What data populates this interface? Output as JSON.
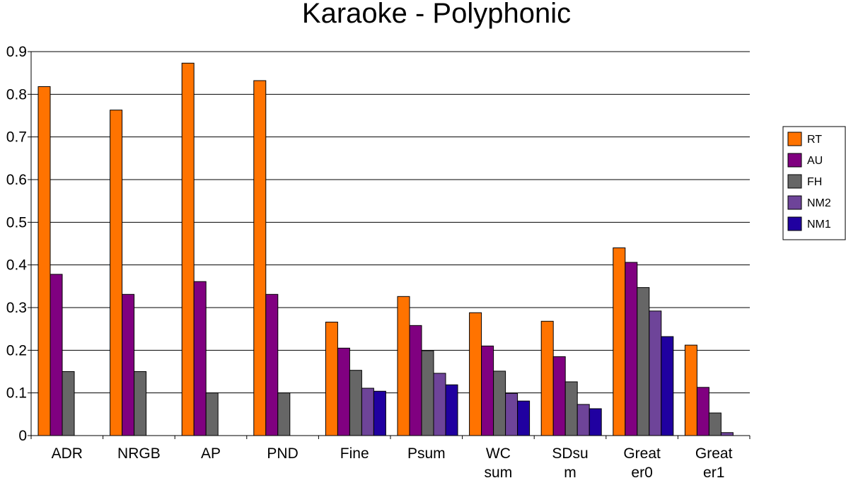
{
  "chart_data": {
    "type": "bar",
    "title": "Karaoke - Polyphonic",
    "xlabel": "",
    "ylabel": "",
    "ylim": [
      0,
      0.9
    ],
    "yticks": [
      "0",
      "0.1",
      "0.2",
      "0.3",
      "0.4",
      "0.5",
      "0.6",
      "0.7",
      "0.8",
      "0.9"
    ],
    "grid": true,
    "legend_position": "right",
    "categories": [
      [
        "ADR"
      ],
      [
        "NRGB"
      ],
      [
        "AP"
      ],
      [
        "PND"
      ],
      [
        "Fine"
      ],
      [
        "Psum"
      ],
      [
        "WC",
        "sum"
      ],
      [
        "SDsu",
        "m"
      ],
      [
        "Great",
        "er0"
      ],
      [
        "Great",
        "er1"
      ]
    ],
    "series": [
      {
        "name": "RT",
        "color": "#FF7300",
        "values": [
          0.818,
          0.763,
          0.873,
          0.832,
          0.266,
          0.326,
          0.288,
          0.268,
          0.44,
          0.212
        ]
      },
      {
        "name": "AU",
        "color": "#800080",
        "values": [
          0.378,
          0.331,
          0.361,
          0.331,
          0.205,
          0.258,
          0.21,
          0.185,
          0.406,
          0.113
        ]
      },
      {
        "name": "FH",
        "color": "#666666",
        "values": [
          0.15,
          0.15,
          0.1,
          0.1,
          0.153,
          0.199,
          0.151,
          0.126,
          0.347,
          0.053
        ]
      },
      {
        "name": "NM2",
        "color": "#6E4499",
        "values": [
          null,
          null,
          null,
          null,
          0.111,
          0.146,
          0.099,
          0.073,
          0.292,
          0.007
        ]
      },
      {
        "name": "NM1",
        "color": "#2000A0",
        "values": [
          null,
          null,
          null,
          null,
          0.104,
          0.119,
          0.081,
          0.063,
          0.232,
          null
        ]
      }
    ]
  }
}
